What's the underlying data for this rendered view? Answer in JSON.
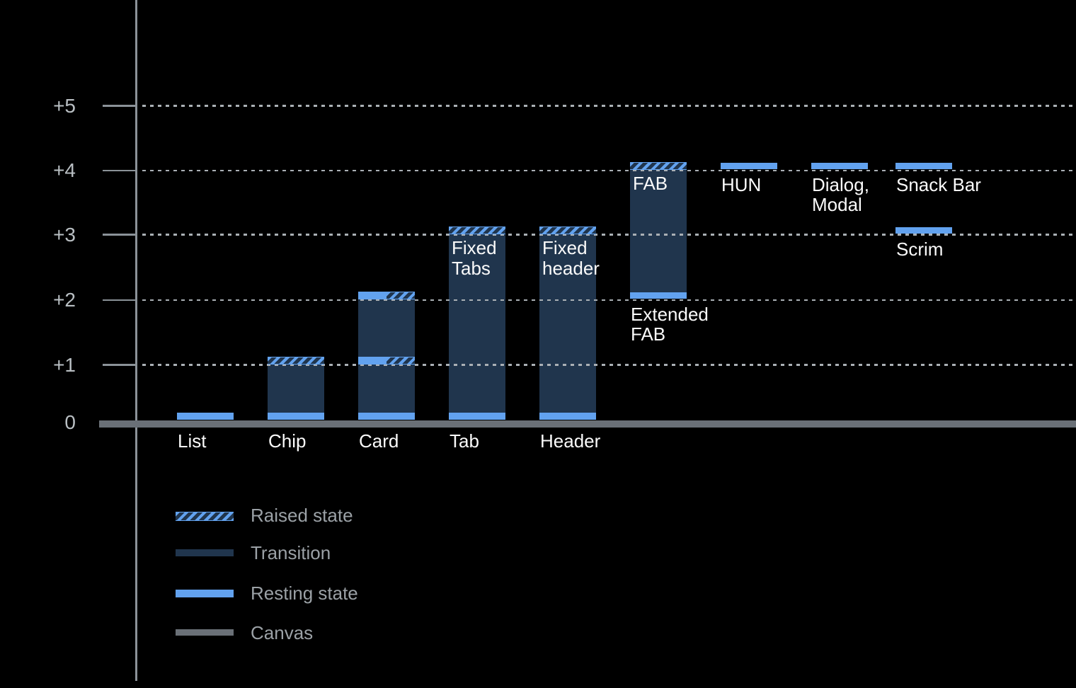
{
  "chart_data": {
    "type": "bar",
    "title": "",
    "subtitle": "",
    "y_axis": {
      "ylim": [
        0,
        5
      ],
      "grid": "dotted",
      "ticks": [
        {
          "label": "+5",
          "level": 5
        },
        {
          "label": "+4",
          "level": 4
        },
        {
          "label": "+3",
          "level": 3
        },
        {
          "label": "+2",
          "level": 2
        },
        {
          "label": "+1",
          "level": 1
        },
        {
          "label": "0",
          "level": 0
        }
      ]
    },
    "components": [
      {
        "key": "list",
        "column": 0,
        "axis_label": "List",
        "segments": [
          {
            "kind": "base",
            "level": 0
          }
        ]
      },
      {
        "key": "chip",
        "column": 1,
        "axis_label": "Chip",
        "segments": [
          {
            "kind": "base",
            "level": 0
          },
          {
            "kind": "body",
            "from": 0,
            "to": 1
          },
          {
            "kind": "raised",
            "level": 1
          }
        ]
      },
      {
        "key": "card",
        "column": 2,
        "axis_label": "Card",
        "segments": [
          {
            "kind": "base",
            "level": 0
          },
          {
            "kind": "body",
            "from": 0,
            "to": 2
          },
          {
            "kind": "rest_raised",
            "level": 1
          },
          {
            "kind": "rest_raised",
            "level": 2
          }
        ]
      },
      {
        "key": "tab",
        "column": 3,
        "axis_label": "Tab",
        "bar_label": [
          "Fixed",
          "Tabs"
        ],
        "segments": [
          {
            "kind": "base",
            "level": 0
          },
          {
            "kind": "body",
            "from": 0,
            "to": 3
          },
          {
            "kind": "raised",
            "level": 3
          }
        ]
      },
      {
        "key": "header",
        "column": 4,
        "axis_label": "Header",
        "bar_label": [
          "Fixed",
          "header"
        ],
        "segments": [
          {
            "kind": "base",
            "level": 0
          },
          {
            "kind": "body",
            "from": 0,
            "to": 3
          },
          {
            "kind": "raised",
            "level": 3
          }
        ]
      },
      {
        "key": "fab",
        "column": 5,
        "bar_label": [
          "FAB"
        ],
        "below_label": {
          "lines": [
            "Extended",
            "FAB"
          ],
          "level": 2
        },
        "segments": [
          {
            "kind": "body",
            "from": 2,
            "to": 4
          },
          {
            "kind": "rest",
            "level": 2
          },
          {
            "kind": "raised",
            "level": 4
          }
        ]
      },
      {
        "key": "hun",
        "column": 6,
        "below_label": {
          "lines": [
            "HUN"
          ],
          "level": 4
        },
        "segments": [
          {
            "kind": "rest",
            "level": 4
          }
        ]
      },
      {
        "key": "dialog-modal",
        "column": 7,
        "below_label": {
          "lines": [
            "Dialog,",
            "Modal"
          ],
          "level": 4
        },
        "segments": [
          {
            "kind": "rest",
            "level": 4
          }
        ]
      },
      {
        "key": "snack-bar",
        "column": 8,
        "below_label": {
          "lines": [
            "Snack Bar"
          ],
          "level": 4
        },
        "segments": [
          {
            "kind": "rest",
            "level": 4
          }
        ]
      },
      {
        "key": "scrim",
        "column": 8,
        "below_label": {
          "lines": [
            "Scrim"
          ],
          "level": 3
        },
        "segments": [
          {
            "kind": "rest",
            "level": 3
          }
        ]
      }
    ],
    "legend": {
      "position": "bottom-left",
      "items": [
        {
          "label": "Raised state",
          "swatch": "raised"
        },
        {
          "label": "Transition",
          "swatch": "transition"
        },
        {
          "label": "Resting state",
          "swatch": "resting"
        },
        {
          "label": "Canvas",
          "swatch": "canvas"
        }
      ]
    },
    "colors": {
      "background": "#000000",
      "resting": "#62a2ef",
      "transition": "#20354d",
      "canvas": "#6a7077",
      "axis": "#8b9298",
      "grid": "#aab0b5",
      "tick_text": "#b9bfc3",
      "label_text": "#fafafa",
      "legend_text": "#9ba1a6"
    }
  }
}
